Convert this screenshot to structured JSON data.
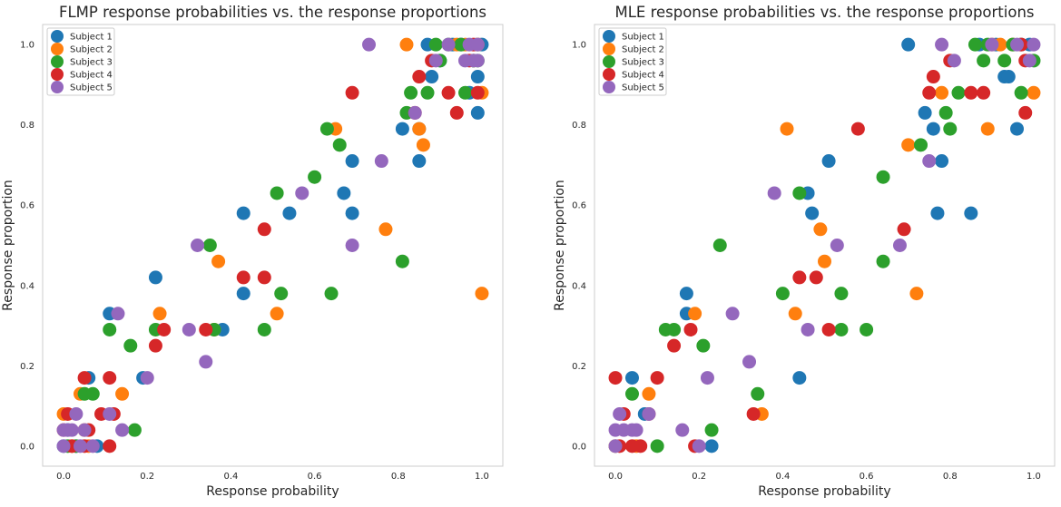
{
  "colors": {
    "subject_1": "#1f77b4",
    "subject_2": "#ff7f0e",
    "subject_3": "#2ca02c",
    "subject_4": "#d62728",
    "subject_5": "#9467bd",
    "axes_edge": "#cccccc",
    "text": "#262626"
  },
  "chart_data": [
    {
      "type": "scatter",
      "title": "FLMP response probabilities vs. the response proportions",
      "xlabel": "Response probability",
      "ylabel": "Response proportion",
      "xlim": [
        -0.05,
        1.05
      ],
      "ylim": [
        -0.05,
        1.05
      ],
      "xticks": [
        "0.0",
        "0.2",
        "0.4",
        "0.6",
        "0.8",
        "1.0"
      ],
      "yticks": [
        "0.0",
        "0.2",
        "0.4",
        "0.6",
        "0.8",
        "1.0"
      ],
      "grid": false,
      "legend": "top-left",
      "series": [
        {
          "name": "Subject 1",
          "color": "#1f77b4",
          "points": [
            [
              0.0,
              0.0
            ],
            [
              0.01,
              0.04
            ],
            [
              0.03,
              0.0
            ],
            [
              0.06,
              0.17
            ],
            [
              0.08,
              0.0
            ],
            [
              0.11,
              0.33
            ],
            [
              0.19,
              0.17
            ],
            [
              0.22,
              0.42
            ],
            [
              0.38,
              0.29
            ],
            [
              0.43,
              0.38
            ],
            [
              0.43,
              0.58
            ],
            [
              0.54,
              0.58
            ],
            [
              0.67,
              0.63
            ],
            [
              0.69,
              0.58
            ],
            [
              0.69,
              0.71
            ],
            [
              0.81,
              0.79
            ],
            [
              0.85,
              0.71
            ],
            [
              0.85,
              0.79
            ],
            [
              0.87,
              1.0
            ],
            [
              0.88,
              0.92
            ],
            [
              0.9,
              0.96
            ],
            [
              0.93,
              1.0
            ],
            [
              0.95,
              1.0
            ],
            [
              0.97,
              0.88
            ],
            [
              0.98,
              0.96
            ],
            [
              0.99,
              1.0
            ],
            [
              0.99,
              0.83
            ],
            [
              0.99,
              0.92
            ],
            [
              1.0,
              1.0
            ]
          ]
        },
        {
          "name": "Subject 2",
          "color": "#ff7f0e",
          "points": [
            [
              0.0,
              0.08
            ],
            [
              0.02,
              0.0
            ],
            [
              0.04,
              0.13
            ],
            [
              0.05,
              0.04
            ],
            [
              0.06,
              0.0
            ],
            [
              0.14,
              0.13
            ],
            [
              0.23,
              0.33
            ],
            [
              0.36,
              0.29
            ],
            [
              0.37,
              0.46
            ],
            [
              0.51,
              0.33
            ],
            [
              0.65,
              0.79
            ],
            [
              0.77,
              0.54
            ],
            [
              0.82,
              1.0
            ],
            [
              0.85,
              0.79
            ],
            [
              0.86,
              0.75
            ],
            [
              0.94,
              1.0
            ],
            [
              0.96,
              1.0
            ],
            [
              0.98,
              0.96
            ],
            [
              0.99,
              1.0
            ],
            [
              1.0,
              0.38
            ],
            [
              1.0,
              0.88
            ]
          ]
        },
        {
          "name": "Subject 3",
          "color": "#2ca02c",
          "points": [
            [
              0.01,
              0.0
            ],
            [
              0.03,
              0.0
            ],
            [
              0.05,
              0.13
            ],
            [
              0.07,
              0.13
            ],
            [
              0.11,
              0.29
            ],
            [
              0.16,
              0.25
            ],
            [
              0.17,
              0.04
            ],
            [
              0.22,
              0.29
            ],
            [
              0.35,
              0.5
            ],
            [
              0.36,
              0.29
            ],
            [
              0.48,
              0.29
            ],
            [
              0.51,
              0.63
            ],
            [
              0.52,
              0.38
            ],
            [
              0.6,
              0.67
            ],
            [
              0.63,
              0.79
            ],
            [
              0.64,
              0.38
            ],
            [
              0.66,
              0.75
            ],
            [
              0.81,
              0.46
            ],
            [
              0.82,
              0.83
            ],
            [
              0.83,
              0.88
            ],
            [
              0.87,
              0.88
            ],
            [
              0.89,
              1.0
            ],
            [
              0.9,
              0.96
            ],
            [
              0.92,
              1.0
            ],
            [
              0.95,
              1.0
            ],
            [
              0.96,
              0.88
            ],
            [
              0.98,
              0.96
            ],
            [
              0.99,
              0.96
            ]
          ]
        },
        {
          "name": "Subject 4",
          "color": "#d62728",
          "points": [
            [
              0.0,
              0.04
            ],
            [
              0.01,
              0.08
            ],
            [
              0.02,
              0.0
            ],
            [
              0.05,
              0.0
            ],
            [
              0.05,
              0.17
            ],
            [
              0.06,
              0.04
            ],
            [
              0.09,
              0.08
            ],
            [
              0.11,
              0.0
            ],
            [
              0.11,
              0.17
            ],
            [
              0.12,
              0.08
            ],
            [
              0.22,
              0.25
            ],
            [
              0.24,
              0.29
            ],
            [
              0.34,
              0.29
            ],
            [
              0.43,
              0.42
            ],
            [
              0.48,
              0.42
            ],
            [
              0.48,
              0.54
            ],
            [
              0.69,
              0.88
            ],
            [
              0.84,
              0.83
            ],
            [
              0.85,
              0.92
            ],
            [
              0.88,
              0.96
            ],
            [
              0.92,
              0.88
            ],
            [
              0.94,
              0.83
            ],
            [
              0.97,
              0.96
            ],
            [
              0.98,
              1.0
            ],
            [
              0.99,
              0.88
            ]
          ]
        },
        {
          "name": "Subject 5",
          "color": "#9467bd",
          "points": [
            [
              0.0,
              0.0
            ],
            [
              0.0,
              0.04
            ],
            [
              0.01,
              0.04
            ],
            [
              0.02,
              0.04
            ],
            [
              0.03,
              0.08
            ],
            [
              0.04,
              0.0
            ],
            [
              0.05,
              0.04
            ],
            [
              0.07,
              0.0
            ],
            [
              0.11,
              0.08
            ],
            [
              0.13,
              0.33
            ],
            [
              0.14,
              0.04
            ],
            [
              0.2,
              0.17
            ],
            [
              0.3,
              0.29
            ],
            [
              0.32,
              0.5
            ],
            [
              0.34,
              0.21
            ],
            [
              0.57,
              0.63
            ],
            [
              0.69,
              0.5
            ],
            [
              0.73,
              1.0
            ],
            [
              0.76,
              0.71
            ],
            [
              0.84,
              0.83
            ],
            [
              0.89,
              0.96
            ],
            [
              0.92,
              1.0
            ],
            [
              0.96,
              0.96
            ],
            [
              0.97,
              1.0
            ],
            [
              0.98,
              0.96
            ],
            [
              0.99,
              1.0
            ],
            [
              0.99,
              0.96
            ]
          ]
        }
      ]
    },
    {
      "type": "scatter",
      "title": "MLE response probabilities vs. the response proportions",
      "xlabel": "Response probability",
      "ylabel": "Response proportion",
      "xlim": [
        -0.05,
        1.05
      ],
      "ylim": [
        -0.05,
        1.05
      ],
      "xticks": [
        "0.0",
        "0.2",
        "0.4",
        "0.6",
        "0.8",
        "1.0"
      ],
      "yticks": [
        "0.0",
        "0.2",
        "0.4",
        "0.6",
        "0.8",
        "1.0"
      ],
      "grid": false,
      "legend": "top-left",
      "series": [
        {
          "name": "Subject 1",
          "color": "#1f77b4",
          "points": [
            [
              0.0,
              0.0
            ],
            [
              0.04,
              0.17
            ],
            [
              0.07,
              0.08
            ],
            [
              0.17,
              0.38
            ],
            [
              0.17,
              0.33
            ],
            [
              0.23,
              0.0
            ],
            [
              0.44,
              0.17
            ],
            [
              0.46,
              0.63
            ],
            [
              0.47,
              0.58
            ],
            [
              0.51,
              0.71
            ],
            [
              0.7,
              1.0
            ],
            [
              0.74,
              0.83
            ],
            [
              0.76,
              0.79
            ],
            [
              0.77,
              0.58
            ],
            [
              0.78,
              0.71
            ],
            [
              0.85,
              0.58
            ],
            [
              0.87,
              1.0
            ],
            [
              0.91,
              1.0
            ],
            [
              0.93,
              0.92
            ],
            [
              0.94,
              0.92
            ],
            [
              0.96,
              0.79
            ],
            [
              0.97,
              1.0
            ],
            [
              0.99,
              1.0
            ]
          ]
        },
        {
          "name": "Subject 2",
          "color": "#ff7f0e",
          "points": [
            [
              0.0,
              0.0
            ],
            [
              0.05,
              0.0
            ],
            [
              0.08,
              0.13
            ],
            [
              0.19,
              0.33
            ],
            [
              0.35,
              0.08
            ],
            [
              0.41,
              0.79
            ],
            [
              0.43,
              0.33
            ],
            [
              0.49,
              0.54
            ],
            [
              0.5,
              0.46
            ],
            [
              0.7,
              0.75
            ],
            [
              0.72,
              0.38
            ],
            [
              0.78,
              0.88
            ],
            [
              0.89,
              0.79
            ],
            [
              0.9,
              1.0
            ],
            [
              0.92,
              1.0
            ],
            [
              0.95,
              1.0
            ],
            [
              1.0,
              0.88
            ]
          ]
        },
        {
          "name": "Subject 3",
          "color": "#2ca02c",
          "points": [
            [
              0.04,
              0.13
            ],
            [
              0.1,
              0.0
            ],
            [
              0.12,
              0.29
            ],
            [
              0.14,
              0.29
            ],
            [
              0.21,
              0.25
            ],
            [
              0.23,
              0.04
            ],
            [
              0.25,
              0.5
            ],
            [
              0.34,
              0.13
            ],
            [
              0.4,
              0.38
            ],
            [
              0.44,
              0.63
            ],
            [
              0.54,
              0.38
            ],
            [
              0.54,
              0.29
            ],
            [
              0.6,
              0.29
            ],
            [
              0.64,
              0.67
            ],
            [
              0.64,
              0.46
            ],
            [
              0.73,
              0.75
            ],
            [
              0.79,
              0.83
            ],
            [
              0.8,
              0.79
            ],
            [
              0.82,
              0.88
            ],
            [
              0.86,
              1.0
            ],
            [
              0.88,
              0.96
            ],
            [
              0.89,
              1.0
            ],
            [
              0.93,
              0.96
            ],
            [
              0.95,
              1.0
            ],
            [
              0.97,
              0.88
            ],
            [
              1.0,
              0.96
            ]
          ]
        },
        {
          "name": "Subject 4",
          "color": "#d62728",
          "points": [
            [
              0.0,
              0.17
            ],
            [
              0.01,
              0.0
            ],
            [
              0.02,
              0.08
            ],
            [
              0.04,
              0.0
            ],
            [
              0.06,
              0.0
            ],
            [
              0.08,
              0.08
            ],
            [
              0.1,
              0.17
            ],
            [
              0.14,
              0.25
            ],
            [
              0.18,
              0.29
            ],
            [
              0.19,
              0.0
            ],
            [
              0.33,
              0.08
            ],
            [
              0.44,
              0.42
            ],
            [
              0.48,
              0.42
            ],
            [
              0.51,
              0.29
            ],
            [
              0.58,
              0.79
            ],
            [
              0.69,
              0.54
            ],
            [
              0.75,
              0.88
            ],
            [
              0.76,
              0.92
            ],
            [
              0.8,
              0.96
            ],
            [
              0.85,
              0.88
            ],
            [
              0.88,
              0.88
            ],
            [
              0.97,
              1.0
            ],
            [
              0.98,
              0.96
            ],
            [
              0.98,
              0.83
            ]
          ]
        },
        {
          "name": "Subject 5",
          "color": "#9467bd",
          "points": [
            [
              0.0,
              0.04
            ],
            [
              0.0,
              0.0
            ],
            [
              0.01,
              0.08
            ],
            [
              0.02,
              0.04
            ],
            [
              0.04,
              0.04
            ],
            [
              0.05,
              0.04
            ],
            [
              0.08,
              0.08
            ],
            [
              0.16,
              0.04
            ],
            [
              0.2,
              0.0
            ],
            [
              0.22,
              0.17
            ],
            [
              0.28,
              0.33
            ],
            [
              0.32,
              0.21
            ],
            [
              0.38,
              0.63
            ],
            [
              0.46,
              0.29
            ],
            [
              0.53,
              0.5
            ],
            [
              0.68,
              0.5
            ],
            [
              0.75,
              0.71
            ],
            [
              0.78,
              1.0
            ],
            [
              0.81,
              0.96
            ],
            [
              0.9,
              1.0
            ],
            [
              0.96,
              1.0
            ],
            [
              0.99,
              0.96
            ],
            [
              1.0,
              1.0
            ]
          ]
        }
      ]
    }
  ]
}
